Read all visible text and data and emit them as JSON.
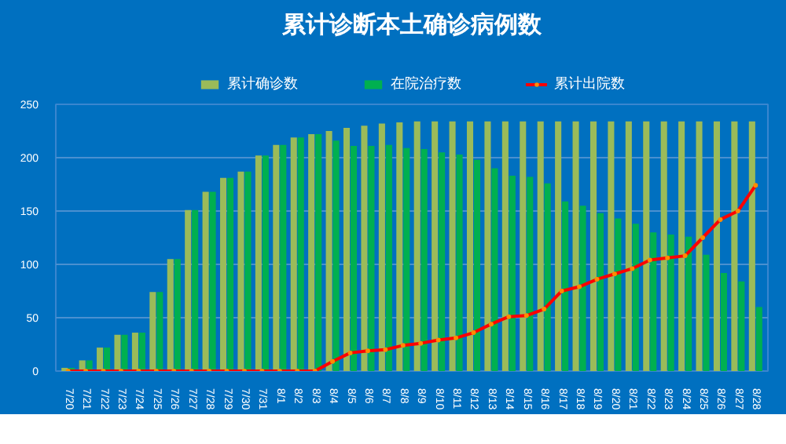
{
  "chart_data": {
    "type": "bar",
    "title": "累计诊断本土确诊病例数",
    "categories": [
      "7/20",
      "7/21",
      "7/22",
      "7/23",
      "7/24",
      "7/25",
      "7/26",
      "7/27",
      "7/28",
      "7/29",
      "7/30",
      "7/31",
      "8/1",
      "8/2",
      "8/3",
      "8/4",
      "8/5",
      "8/6",
      "8/7",
      "8/8",
      "8/9",
      "8/10",
      "8/11",
      "8/12",
      "8/13",
      "8/14",
      "8/15",
      "8/16",
      "8/17",
      "8/18",
      "8/19",
      "8/20",
      "8/21",
      "8/22",
      "8/23",
      "8/24",
      "8/25",
      "8/26",
      "8/27",
      "8/28"
    ],
    "series": [
      {
        "name": "累计确诊数",
        "color": "#9bbb59",
        "values": [
          3,
          10,
          22,
          34,
          36,
          74,
          105,
          151,
          168,
          181,
          187,
          202,
          212,
          219,
          222,
          225,
          228,
          230,
          232,
          233,
          234,
          234,
          234,
          234,
          234,
          234,
          234,
          234,
          234,
          234,
          234,
          234,
          234,
          234,
          234,
          234,
          234,
          234,
          234,
          234
        ]
      },
      {
        "name": "在院治疗数",
        "color": "#00b050",
        "values": [
          3,
          10,
          22,
          34,
          36,
          74,
          105,
          151,
          168,
          181,
          187,
          202,
          212,
          219,
          222,
          216,
          211,
          211,
          212,
          209,
          208,
          205,
          203,
          198,
          190,
          183,
          182,
          176,
          159,
          155,
          148,
          143,
          138,
          130,
          128,
          126,
          109,
          92,
          84,
          60
        ]
      },
      {
        "name": "累计出院数",
        "type": "line",
        "color": "#ff0000",
        "marker": "circle",
        "values": [
          0,
          0,
          0,
          0,
          0,
          0,
          0,
          0,
          0,
          0,
          0,
          0,
          0,
          0,
          0,
          9,
          17,
          19,
          20,
          24,
          26,
          29,
          31,
          36,
          44,
          51,
          52,
          58,
          75,
          79,
          86,
          91,
          96,
          104,
          106,
          108,
          125,
          142,
          150,
          174
        ]
      }
    ],
    "ylim": [
      0,
      250
    ],
    "yticks": [
      0,
      50,
      100,
      150,
      200,
      250
    ],
    "grid": "y",
    "legend": "top"
  }
}
